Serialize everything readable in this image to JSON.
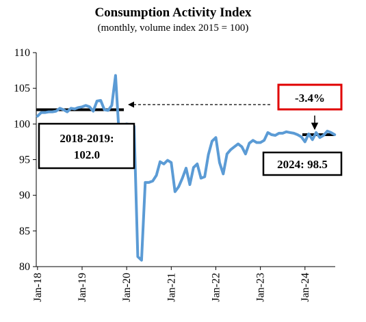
{
  "chart_data": {
    "type": "line",
    "title": "Consumption Activity Index",
    "subtitle": "(monthly, volume index 2015 = 100)",
    "xlabel": "",
    "ylabel": "",
    "ylim": [
      80,
      110
    ],
    "y_ticks": [
      "80",
      "85",
      "90",
      "95",
      "100",
      "105",
      "110"
    ],
    "x_tick_labels": [
      "Jan-18",
      "Jan-19",
      "Jan-20",
      "Jan-21",
      "Jan-22",
      "Jan-23",
      "Jan-24"
    ],
    "grid": false,
    "line_color": "#5b9bd5",
    "series": [
      {
        "x_start": "2018-01",
        "frequency": "monthly",
        "values": [
          101.1,
          101.6,
          101.6,
          101.7,
          101.7,
          101.8,
          102.2,
          102.0,
          101.7,
          102.2,
          102.1,
          102.3,
          102.4,
          102.6,
          102.4,
          101.8,
          103.2,
          103.3,
          102.0,
          101.9,
          102.6,
          106.8,
          98.2,
          99.8,
          100.0,
          99.9,
          99.7,
          81.4,
          80.9,
          91.8,
          91.8,
          92.0,
          92.8,
          94.7,
          94.4,
          94.9,
          94.6,
          90.5,
          91.2,
          92.4,
          93.8,
          91.5,
          93.9,
          94.4,
          92.4,
          92.6,
          95.7,
          97.6,
          98.1,
          94.6,
          93.0,
          95.8,
          96.4,
          96.8,
          97.2,
          96.8,
          95.8,
          97.3,
          97.7,
          97.4,
          97.4,
          97.7,
          98.8,
          98.5,
          98.4,
          98.7,
          98.7,
          98.9,
          98.8,
          98.7,
          98.5,
          98.2,
          97.5,
          98.6,
          97.8,
          98.8,
          98.1,
          98.4,
          99.0,
          98.8,
          98.5
        ]
      }
    ],
    "reference_lines": [
      {
        "name": "2018-2019",
        "value": 102.0
      },
      {
        "name": "2024",
        "value": 98.5
      }
    ]
  },
  "annotations": {
    "box_left": "2018-2019:\n102.0",
    "box_left_line1": "2018-2019:",
    "box_left_line2": "102.0",
    "box_right": "2024: 98.5",
    "change": "-3.4%",
    "change_border_color": "#e00000"
  }
}
